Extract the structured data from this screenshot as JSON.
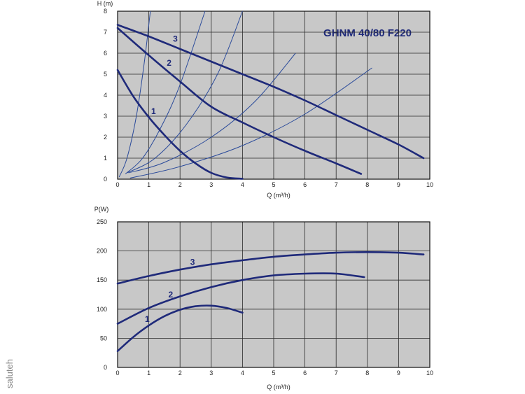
{
  "watermark": "saluteh",
  "colors": {
    "plot_bg": "#c8c8c8",
    "grid": "#2a2a2a",
    "curve": "#1f2a7a",
    "system_curve": "#2a4a9a",
    "frame": "#111111"
  },
  "chart_data": [
    {
      "type": "line",
      "title": "GHNM 40/80 F220",
      "xlabel": "Q (m³/h)",
      "ylabel": "H (m)",
      "xlim": [
        0,
        10
      ],
      "ylim": [
        0,
        8
      ],
      "x_ticks": [
        "0",
        "1",
        "2",
        "3",
        "4",
        "5",
        "6",
        "7",
        "8",
        "9",
        "10"
      ],
      "y_ticks": [
        "0",
        "1",
        "2",
        "3",
        "4",
        "5",
        "6",
        "7",
        "8"
      ],
      "grid": true,
      "series": [
        {
          "name": "1",
          "x": [
            0,
            0.5,
            1,
            1.5,
            2,
            2.5,
            3,
            3.5,
            4
          ],
          "y": [
            5.2,
            3.95,
            2.95,
            2.1,
            1.35,
            0.75,
            0.3,
            0.08,
            0.02
          ]
        },
        {
          "name": "2",
          "x": [
            0,
            1,
            2,
            3,
            4,
            5,
            6,
            7,
            7.8
          ],
          "y": [
            7.2,
            5.9,
            4.65,
            3.45,
            2.7,
            2.0,
            1.35,
            0.75,
            0.25
          ]
        },
        {
          "name": "3",
          "x": [
            0,
            1,
            2,
            3,
            4,
            5,
            6,
            7,
            8,
            9,
            9.8
          ],
          "y": [
            7.35,
            6.8,
            6.2,
            5.6,
            5.0,
            4.4,
            3.75,
            3.05,
            2.35,
            1.65,
            1.0
          ]
        }
      ],
      "system_curves": [
        {
          "x": [
            0.05,
            0.3,
            0.6,
            0.85,
            1.05
          ],
          "y": [
            0.1,
            1.0,
            3.0,
            5.5,
            8.0
          ]
        },
        {
          "x": [
            0.25,
            0.8,
            1.4,
            2.0,
            2.8
          ],
          "y": [
            0.25,
            1.0,
            2.5,
            4.5,
            8.0
          ]
        },
        {
          "x": [
            0.3,
            1.2,
            2.2,
            3.2,
            4.0
          ],
          "y": [
            0.3,
            1.0,
            2.6,
            5.0,
            8.0
          ]
        },
        {
          "x": [
            0.35,
            1.5,
            3.0,
            4.4,
            5.7
          ],
          "y": [
            0.3,
            0.8,
            2.0,
            3.7,
            6.0
          ]
        },
        {
          "x": [
            0.4,
            2.0,
            4.0,
            6.0,
            8.15
          ],
          "y": [
            0.05,
            0.6,
            1.6,
            3.1,
            5.3
          ]
        }
      ],
      "curve_labels": [
        {
          "text": "1",
          "x": 1.15,
          "y": 3.1
        },
        {
          "text": "2",
          "x": 1.65,
          "y": 5.4
        },
        {
          "text": "3",
          "x": 1.85,
          "y": 6.55
        }
      ]
    },
    {
      "type": "line",
      "title": "",
      "xlabel": "Q (m³/h)",
      "ylabel": "P(W)",
      "xlim": [
        0,
        10
      ],
      "ylim": [
        0,
        250
      ],
      "x_ticks": [
        "0",
        "1",
        "2",
        "3",
        "4",
        "5",
        "6",
        "7",
        "8",
        "9",
        "10"
      ],
      "y_ticks": [
        "0",
        "50",
        "100",
        "150",
        "200",
        "250"
      ],
      "grid": true,
      "series": [
        {
          "name": "1",
          "x": [
            0,
            0.5,
            1,
            1.5,
            2,
            2.5,
            3,
            3.5,
            4
          ],
          "y": [
            28,
            52,
            72,
            88,
            99,
            105,
            106,
            102,
            94
          ]
        },
        {
          "name": "2",
          "x": [
            0,
            1,
            2,
            3,
            4,
            5,
            6,
            7,
            7.9
          ],
          "y": [
            75,
            102,
            122,
            138,
            150,
            158,
            161,
            161,
            155
          ]
        },
        {
          "name": "3",
          "x": [
            0,
            1,
            2,
            3,
            4,
            5,
            6,
            7,
            8,
            9,
            9.8
          ],
          "y": [
            144,
            157,
            168,
            177,
            184,
            190,
            194,
            197,
            198,
            197,
            194
          ]
        }
      ],
      "curve_labels": [
        {
          "text": "1",
          "x": 0.95,
          "y": 78
        },
        {
          "text": "2",
          "x": 1.7,
          "y": 120
        },
        {
          "text": "3",
          "x": 2.4,
          "y": 176
        }
      ]
    }
  ]
}
